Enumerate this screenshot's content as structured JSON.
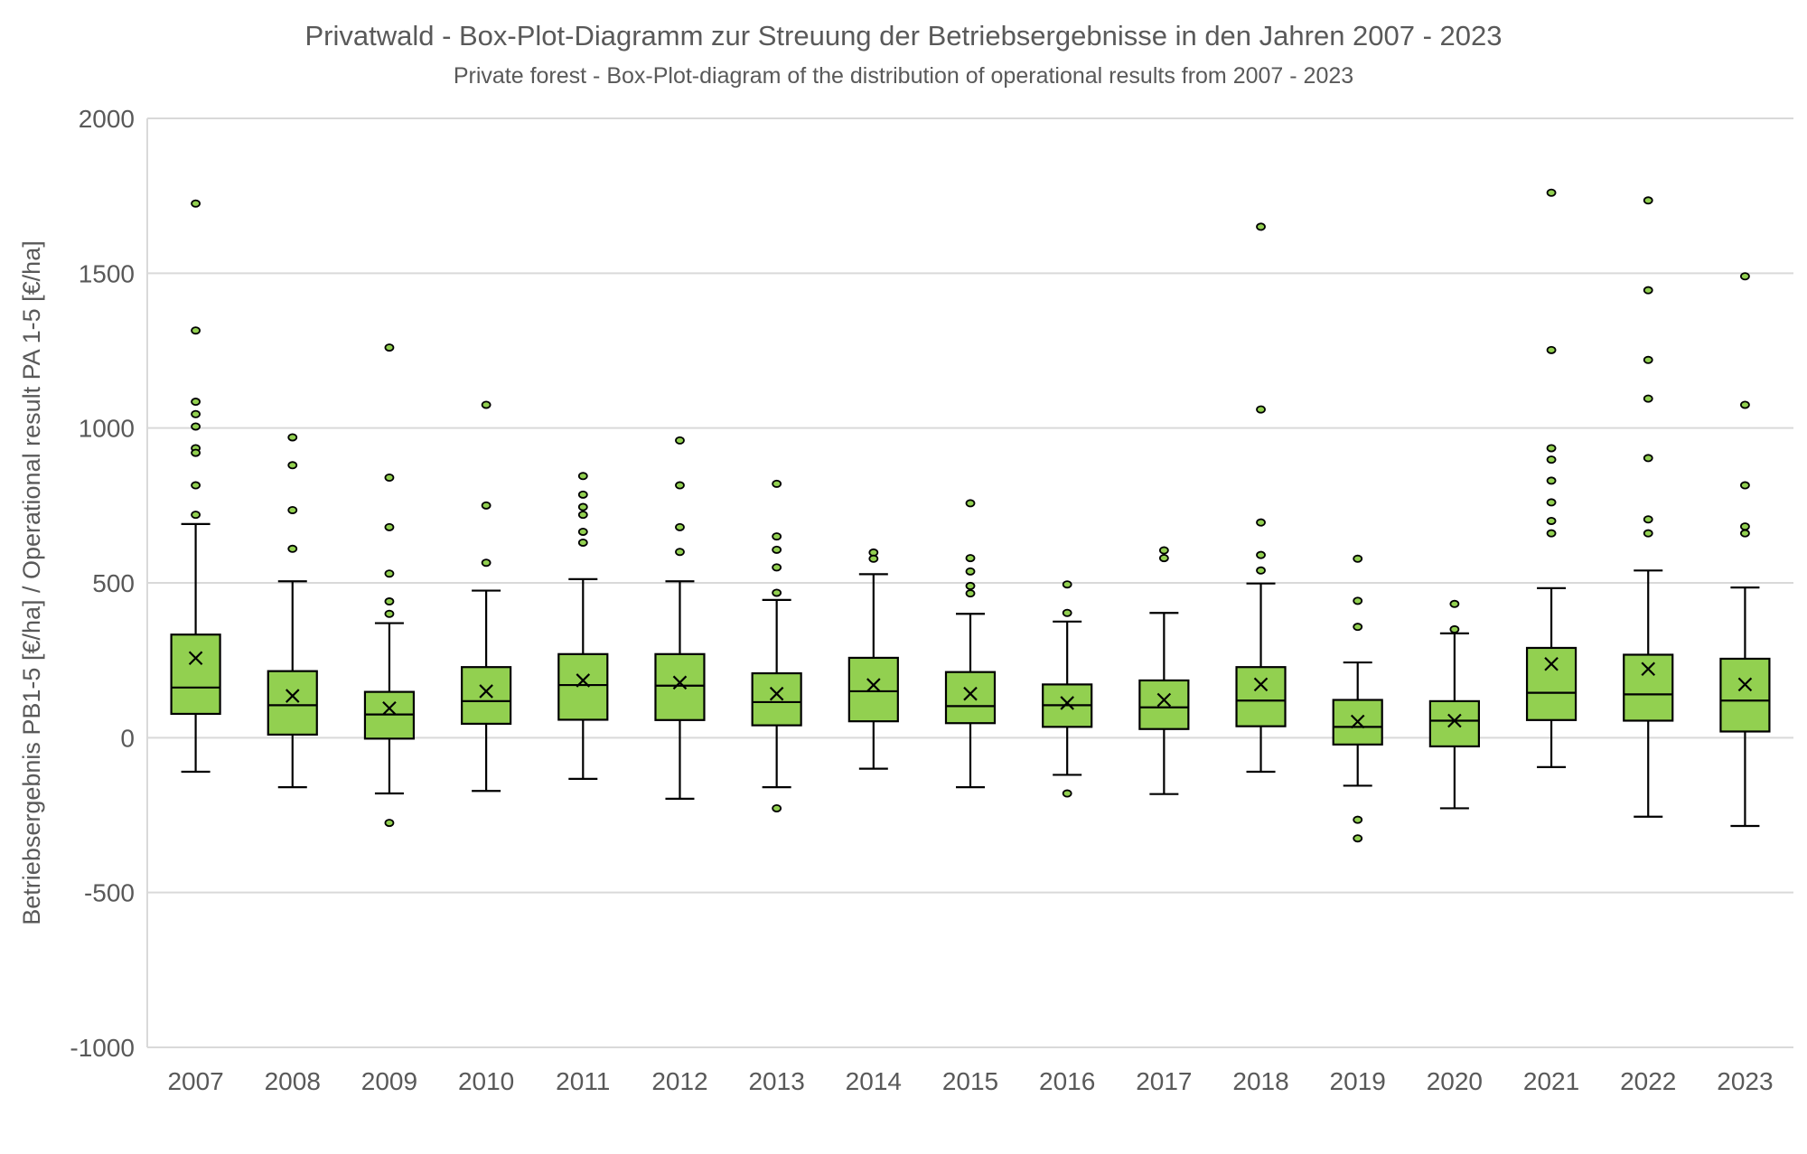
{
  "chart_data": {
    "type": "boxplot",
    "title": "Privatwald - Box-Plot-Diagramm zur Streuung der Betriebsergebnisse in den Jahren 2007 - 2023",
    "subtitle": "Private forest - Box-Plot-diagram of the distribution of operational results from 2007 - 2023",
    "xlabel": "",
    "ylabel": "Betriebsergebnis PB1-5 [€/ha] / Operational result PA 1-5 [€/ha]",
    "ylim": [
      -1000,
      2000
    ],
    "yticks": [
      -1000,
      -500,
      0,
      500,
      1000,
      1500,
      2000
    ],
    "grid": true,
    "colors": {
      "box": "#92D050",
      "outline": "#000000",
      "grid": "#D9D9D9"
    },
    "categories": [
      "2007",
      "2008",
      "2009",
      "2010",
      "2011",
      "2012",
      "2013",
      "2014",
      "2015",
      "2016",
      "2017",
      "2018",
      "2019",
      "2020",
      "2021",
      "2022",
      "2023"
    ],
    "boxes": [
      {
        "min": -110,
        "q1": 77,
        "median": 162,
        "q3": 333,
        "max": 690,
        "mean": 257,
        "outliers": [
          1725,
          1315,
          1085,
          1045,
          1005,
          935,
          920,
          815,
          720
        ]
      },
      {
        "min": -160,
        "q1": 10,
        "median": 105,
        "q3": 215,
        "max": 505,
        "mean": 135,
        "outliers": [
          970,
          880,
          735,
          610
        ]
      },
      {
        "min": -180,
        "q1": -3,
        "median": 75,
        "q3": 148,
        "max": 370,
        "mean": 95,
        "outliers": [
          1260,
          840,
          680,
          530,
          440,
          400,
          -275
        ]
      },
      {
        "min": -172,
        "q1": 45,
        "median": 118,
        "q3": 228,
        "max": 475,
        "mean": 150,
        "outliers": [
          1075,
          750,
          565
        ]
      },
      {
        "min": -133,
        "q1": 58,
        "median": 170,
        "q3": 270,
        "max": 512,
        "mean": 185,
        "outliers": [
          845,
          785,
          745,
          720,
          665,
          630
        ]
      },
      {
        "min": -197,
        "q1": 57,
        "median": 168,
        "q3": 270,
        "max": 505,
        "mean": 178,
        "outliers": [
          960,
          815,
          680,
          600
        ]
      },
      {
        "min": -160,
        "q1": 40,
        "median": 115,
        "q3": 208,
        "max": 445,
        "mean": 142,
        "outliers": [
          820,
          650,
          607,
          550,
          468,
          -228
        ]
      },
      {
        "min": -100,
        "q1": 53,
        "median": 150,
        "q3": 258,
        "max": 528,
        "mean": 170,
        "outliers": [
          598,
          578
        ]
      },
      {
        "min": -160,
        "q1": 47,
        "median": 102,
        "q3": 212,
        "max": 400,
        "mean": 142,
        "outliers": [
          757,
          580,
          537,
          490,
          466
        ]
      },
      {
        "min": -120,
        "q1": 35,
        "median": 105,
        "q3": 172,
        "max": 375,
        "mean": 112,
        "outliers": [
          495,
          403,
          -180
        ]
      },
      {
        "min": -182,
        "q1": 28,
        "median": 98,
        "q3": 185,
        "max": 403,
        "mean": 122,
        "outliers": [
          605,
          580
        ]
      },
      {
        "min": -110,
        "q1": 37,
        "median": 120,
        "q3": 228,
        "max": 498,
        "mean": 172,
        "outliers": [
          1650,
          1060,
          695,
          590,
          540
        ]
      },
      {
        "min": -155,
        "q1": -22,
        "median": 35,
        "q3": 122,
        "max": 243,
        "mean": 52,
        "outliers": [
          578,
          442,
          358,
          -265,
          -325
        ]
      },
      {
        "min": -228,
        "q1": -28,
        "median": 55,
        "q3": 118,
        "max": 337,
        "mean": 55,
        "outliers": [
          432,
          350
        ]
      },
      {
        "min": -95,
        "q1": 57,
        "median": 145,
        "q3": 290,
        "max": 483,
        "mean": 238,
        "outliers": [
          1760,
          1252,
          935,
          898,
          830,
          760,
          700,
          660
        ]
      },
      {
        "min": -255,
        "q1": 55,
        "median": 140,
        "q3": 268,
        "max": 540,
        "mean": 222,
        "outliers": [
          1735,
          1445,
          1220,
          1095,
          903,
          705,
          660
        ]
      },
      {
        "min": -285,
        "q1": 20,
        "median": 120,
        "q3": 255,
        "max": 485,
        "mean": 172,
        "outliers": [
          1490,
          1075,
          815,
          682,
          660
        ]
      }
    ]
  }
}
